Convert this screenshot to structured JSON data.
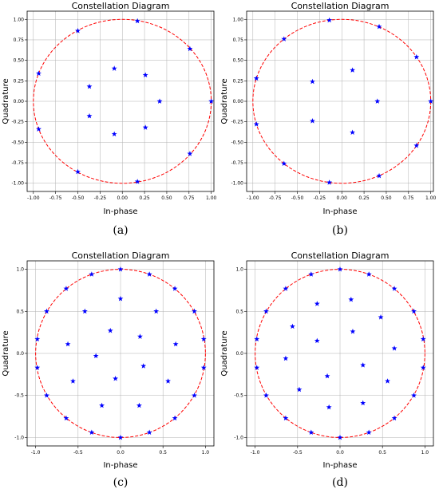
{
  "styles": {
    "marker_color": "#0000ff",
    "circle_color": "#ff0000",
    "grid": true
  },
  "chart_data": [
    {
      "caption": "(a)",
      "title": "Constellation Diagram",
      "xlabel": "In-phase",
      "ylabel": "Quadrature",
      "type": "scatter",
      "xlim": [
        -1.07,
        1.03
      ],
      "ylim": [
        -1.1,
        1.1
      ],
      "xticks": [
        -1.0,
        -0.75,
        -0.5,
        -0.25,
        0.0,
        0.25,
        0.5,
        0.75,
        1.0
      ],
      "yticks": [
        -1.0,
        -0.75,
        -0.5,
        -0.25,
        0.0,
        0.25,
        0.5,
        0.75,
        1.0
      ],
      "xtick_labels": [
        "-1.00",
        "-0.75",
        "-0.50",
        "-0.25",
        "0.00",
        "0.25",
        "0.50",
        "0.75",
        "1.00"
      ],
      "ytick_labels": [
        "-1.00",
        "-0.75",
        "-0.50",
        "-0.25",
        "0.00",
        "0.25",
        "0.50",
        "0.75",
        "1.00"
      ],
      "circle_radius": 1.0,
      "points": [
        [
          1.0,
          0.0
        ],
        [
          0.76,
          0.64
        ],
        [
          0.17,
          0.98
        ],
        [
          -0.5,
          0.86
        ],
        [
          -0.94,
          0.34
        ],
        [
          -0.94,
          -0.34
        ],
        [
          -0.5,
          -0.86
        ],
        [
          0.17,
          -0.98
        ],
        [
          0.76,
          -0.64
        ],
        [
          0.42,
          0.0
        ],
        [
          0.26,
          0.32
        ],
        [
          -0.09,
          0.4
        ],
        [
          -0.37,
          0.18
        ],
        [
          -0.37,
          -0.18
        ],
        [
          -0.09,
          -0.4
        ],
        [
          0.26,
          -0.32
        ]
      ]
    },
    {
      "caption": "(b)",
      "title": "Constellation Diagram",
      "xlabel": "In-phase",
      "ylabel": "Quadrature",
      "type": "scatter",
      "xlim": [
        -1.07,
        1.03
      ],
      "ylim": [
        -1.1,
        1.1
      ],
      "xticks": [
        -1.0,
        -0.75,
        -0.5,
        -0.25,
        0.0,
        0.25,
        0.5,
        0.75,
        1.0
      ],
      "yticks": [
        -1.0,
        -0.75,
        -0.5,
        -0.25,
        0.0,
        0.25,
        0.5,
        0.75,
        1.0
      ],
      "xtick_labels": [
        "-1.00",
        "-0.75",
        "-0.50",
        "-0.25",
        "0.00",
        "0.25",
        "0.50",
        "0.75",
        "1.00"
      ],
      "ytick_labels": [
        "-1.00",
        "-0.75",
        "-0.50",
        "-0.25",
        "0.00",
        "0.25",
        "0.50",
        "0.75",
        "1.00"
      ],
      "circle_radius": 1.0,
      "points": [
        [
          1.0,
          0.0
        ],
        [
          0.84,
          0.54
        ],
        [
          0.42,
          0.91
        ],
        [
          -0.14,
          0.99
        ],
        [
          -0.65,
          0.76
        ],
        [
          -0.96,
          0.28
        ],
        [
          -0.96,
          -0.28
        ],
        [
          -0.65,
          -0.76
        ],
        [
          -0.14,
          -0.99
        ],
        [
          0.42,
          -0.91
        ],
        [
          0.84,
          -0.54
        ],
        [
          0.4,
          0.0
        ],
        [
          0.12,
          0.38
        ],
        [
          -0.33,
          0.24
        ],
        [
          -0.33,
          -0.24
        ],
        [
          0.12,
          -0.38
        ]
      ]
    },
    {
      "caption": "(c)",
      "title": "Constellation Diagram",
      "xlabel": "In-phase",
      "ylabel": "Quadrature",
      "type": "scatter",
      "xlim": [
        -1.1,
        1.1
      ],
      "ylim": [
        -1.1,
        1.1
      ],
      "xticks": [
        -1.0,
        -0.5,
        0.0,
        0.5,
        1.0
      ],
      "yticks": [
        -1.0,
        -0.5,
        0.0,
        0.5,
        1.0
      ],
      "xtick_labels": [
        "-1.0",
        "-0.5",
        "0.0",
        "0.5",
        "1.0"
      ],
      "ytick_labels": [
        "-1.0",
        "-0.5",
        "0.0",
        "0.5",
        "1.0"
      ],
      "circle_radius": 1.0,
      "points": [
        [
          0.0,
          1.0
        ],
        [
          0.34,
          0.94
        ],
        [
          0.64,
          0.77
        ],
        [
          0.87,
          0.5
        ],
        [
          0.98,
          0.17
        ],
        [
          0.98,
          -0.17
        ],
        [
          0.87,
          -0.5
        ],
        [
          0.64,
          -0.77
        ],
        [
          0.34,
          -0.94
        ],
        [
          0.0,
          -1.0
        ],
        [
          -0.34,
          -0.94
        ],
        [
          -0.64,
          -0.77
        ],
        [
          -0.87,
          -0.5
        ],
        [
          -0.98,
          -0.17
        ],
        [
          -0.98,
          0.17
        ],
        [
          -0.87,
          0.5
        ],
        [
          -0.64,
          0.77
        ],
        [
          -0.34,
          0.94
        ],
        [
          0.0,
          0.65
        ],
        [
          0.42,
          0.5
        ],
        [
          0.65,
          0.11
        ],
        [
          0.56,
          -0.33
        ],
        [
          0.22,
          -0.62
        ],
        [
          -0.22,
          -0.62
        ],
        [
          -0.56,
          -0.33
        ],
        [
          -0.62,
          0.11
        ],
        [
          -0.42,
          0.5
        ],
        [
          -0.12,
          0.27
        ],
        [
          0.23,
          0.2
        ],
        [
          0.27,
          -0.15
        ],
        [
          -0.06,
          -0.3
        ],
        [
          -0.29,
          -0.03
        ]
      ]
    },
    {
      "caption": "(d)",
      "title": "Constellation Diagram",
      "xlabel": "In-phase",
      "ylabel": "Quadrature",
      "type": "scatter",
      "xlim": [
        -1.1,
        1.1
      ],
      "ylim": [
        -1.1,
        1.1
      ],
      "xticks": [
        -1.0,
        -0.5,
        0.0,
        0.5,
        1.0
      ],
      "yticks": [
        -1.0,
        -0.5,
        0.0,
        0.5,
        1.0
      ],
      "xtick_labels": [
        "-1.0",
        "-0.5",
        "0.0",
        "0.5",
        "1.0"
      ],
      "ytick_labels": [
        "-1.0",
        "-0.5",
        "0.0",
        "0.5",
        "1.0"
      ],
      "circle_radius": 1.0,
      "points": [
        [
          0.0,
          1.0
        ],
        [
          0.34,
          0.94
        ],
        [
          0.64,
          0.77
        ],
        [
          0.87,
          0.5
        ],
        [
          0.98,
          0.17
        ],
        [
          0.98,
          -0.17
        ],
        [
          0.87,
          -0.5
        ],
        [
          0.64,
          -0.77
        ],
        [
          0.34,
          -0.94
        ],
        [
          0.0,
          -1.0
        ],
        [
          -0.34,
          -0.94
        ],
        [
          -0.64,
          -0.77
        ],
        [
          -0.87,
          -0.5
        ],
        [
          -0.98,
          -0.17
        ],
        [
          -0.98,
          0.17
        ],
        [
          -0.87,
          0.5
        ],
        [
          -0.64,
          0.77
        ],
        [
          -0.34,
          0.94
        ],
        [
          0.13,
          0.64
        ],
        [
          0.48,
          0.43
        ],
        [
          0.64,
          0.06
        ],
        [
          0.56,
          -0.33
        ],
        [
          0.27,
          -0.59
        ],
        [
          -0.13,
          -0.64
        ],
        [
          -0.48,
          -0.43
        ],
        [
          -0.64,
          -0.06
        ],
        [
          -0.56,
          0.32
        ],
        [
          -0.27,
          0.59
        ],
        [
          0.15,
          0.26
        ],
        [
          0.27,
          -0.14
        ],
        [
          -0.15,
          -0.27
        ],
        [
          -0.27,
          0.15
        ]
      ]
    }
  ]
}
